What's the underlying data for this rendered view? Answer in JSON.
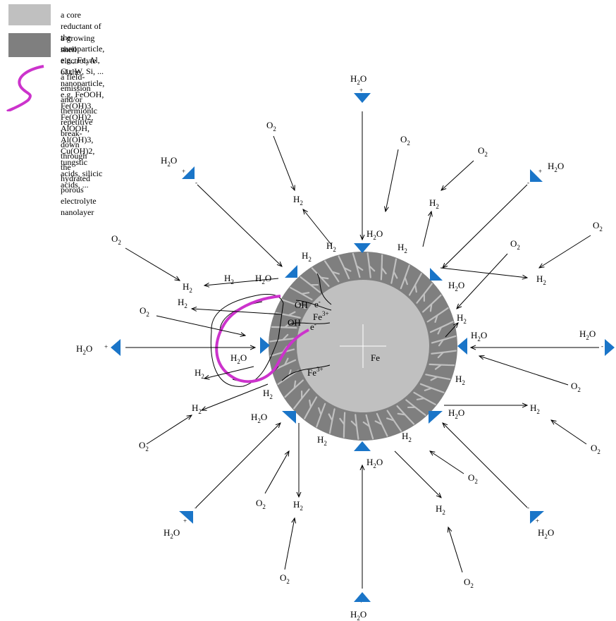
{
  "legend": {
    "core": {
      "text": "a core reductant of the nanoparticle,  e.g., Fe, Al, Cu, W, Si, ...",
      "color": "#c0c0c0"
    },
    "shell": {
      "text": "a growing shell electrolyte of the nanoparticle, e.g. FeOOH, Fe(OH)3, Fe(OH)2,\nAlOOH, Al(OH)3, Cu(OH)2, tungstic acids, silicic acids, ...",
      "color": "#7f7f7f"
    },
    "breakdown": {
      "text": "a field-emission and/or thermionic repetitive break-down\nthrough the hydrated porous electrolyte nanolayer",
      "color": "#cc33cc"
    }
  },
  "colors": {
    "dipole": "#1a75c8",
    "arrow": "#000000"
  },
  "species": {
    "h2o": "H2O",
    "h2": "H2",
    "o2": "O2",
    "oh": "OH",
    "e": "e",
    "fe3": "Fe",
    "fe3_charge": "3+",
    "core_label": "Fe",
    "plus": "+",
    "minus": "-"
  }
}
